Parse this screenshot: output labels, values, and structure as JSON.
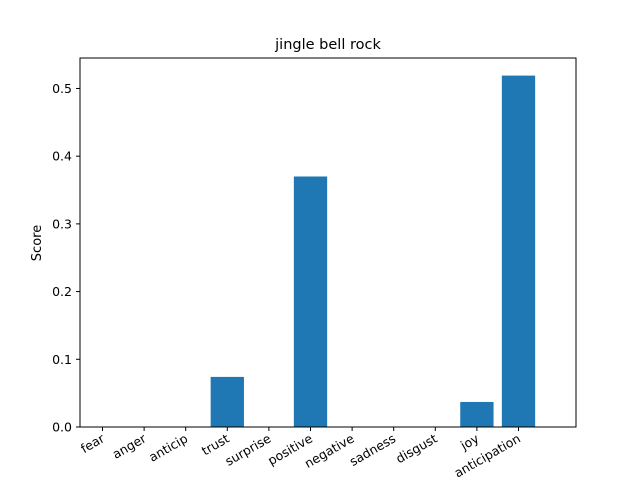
{
  "chart_data": {
    "type": "bar",
    "title": "jingle bell rock",
    "xlabel": "",
    "ylabel": "Score",
    "categories": [
      "fear",
      "anger",
      "anticip",
      "trust",
      "surprise",
      "positive",
      "negative",
      "sadness",
      "disgust",
      "joy",
      "anticipation"
    ],
    "values": [
      0,
      0,
      0,
      0.074,
      0,
      0.37,
      0,
      0,
      0,
      0.037,
      0.519
    ],
    "ylim": [
      0,
      0.545
    ],
    "yticks": [
      0.0,
      0.1,
      0.2,
      0.3,
      0.4,
      0.5
    ],
    "ytick_labels": [
      "0.0",
      "0.1",
      "0.2",
      "0.3",
      "0.4",
      "0.5"
    ],
    "grid": false,
    "bar_color": "#1f77b4"
  }
}
